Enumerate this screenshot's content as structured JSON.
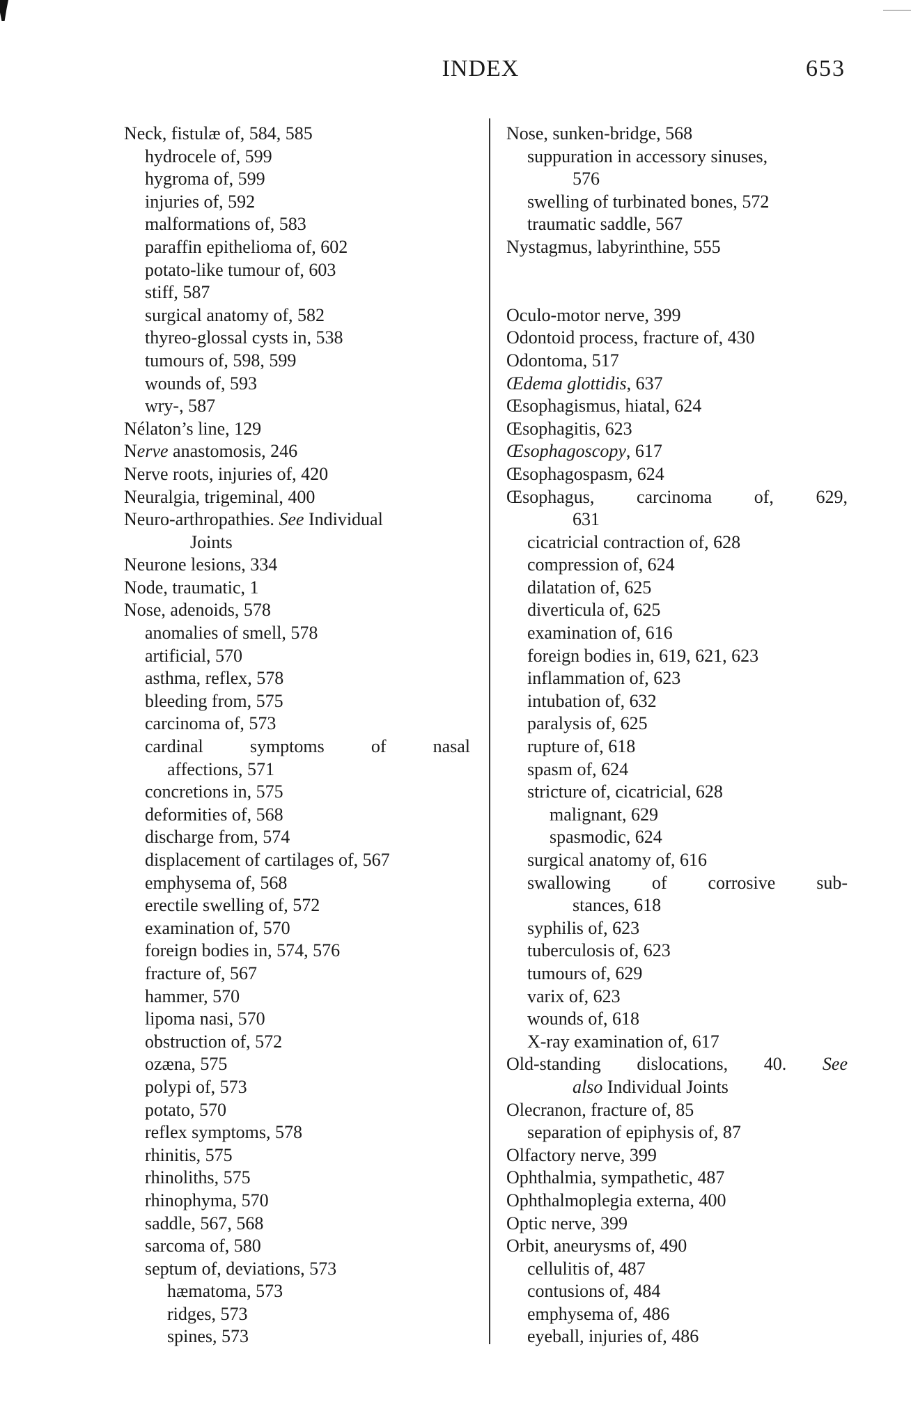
{
  "header": {
    "title": "INDEX",
    "page_number": "653"
  },
  "columns": {
    "left": [
      {
        "i": 0,
        "parts": [
          {
            "t": "Neck, fistulæ of, 584, 585"
          }
        ]
      },
      {
        "i": 1,
        "parts": [
          {
            "t": "hydrocele of, 599"
          }
        ]
      },
      {
        "i": 1,
        "parts": [
          {
            "t": "hygroma of, 599"
          }
        ]
      },
      {
        "i": 1,
        "parts": [
          {
            "t": "injuries of, 592"
          }
        ]
      },
      {
        "i": 1,
        "parts": [
          {
            "t": "malformations of, 583"
          }
        ]
      },
      {
        "i": 1,
        "parts": [
          {
            "t": "paraffin epithelioma of, 602"
          }
        ]
      },
      {
        "i": 1,
        "parts": [
          {
            "t": "potato-like tumour of, 603"
          }
        ]
      },
      {
        "i": 1,
        "parts": [
          {
            "t": "stiff, 587"
          }
        ]
      },
      {
        "i": 1,
        "parts": [
          {
            "t": "surgical anatomy of, 582"
          }
        ]
      },
      {
        "i": 1,
        "parts": [
          {
            "t": "thyreo-glossal cysts in, 538"
          }
        ]
      },
      {
        "i": 1,
        "parts": [
          {
            "t": "tumours of, 598, 599"
          }
        ]
      },
      {
        "i": 1,
        "parts": [
          {
            "t": "wounds of, 593"
          }
        ]
      },
      {
        "i": 1,
        "parts": [
          {
            "t": "wry-, 587"
          }
        ]
      },
      {
        "i": 0,
        "parts": [
          {
            "t": "Nélaton’s line, 129"
          }
        ]
      },
      {
        "i": 0,
        "parts": [
          {
            "t": "N"
          },
          {
            "t": "erve",
            "em": true
          },
          {
            "t": " anastomosis, 246"
          }
        ]
      },
      {
        "i": 0,
        "parts": [
          {
            "t": "Nerve roots, injuries of, 420"
          }
        ]
      },
      {
        "i": 0,
        "parts": [
          {
            "t": "Neuralgia, trigeminal, 400"
          }
        ]
      },
      {
        "i": 0,
        "parts": [
          {
            "t": "Neuro-arthropathies. "
          },
          {
            "t": "See",
            "em": true
          },
          {
            "t": " Individual"
          }
        ]
      },
      {
        "i": 3,
        "parts": [
          {
            "t": "Joints"
          }
        ]
      },
      {
        "i": 0,
        "parts": [
          {
            "t": "Neurone lesions, 334"
          }
        ]
      },
      {
        "i": 0,
        "parts": [
          {
            "t": "Node, traumatic, 1"
          }
        ]
      },
      {
        "i": 0,
        "parts": [
          {
            "t": "Nose, adenoids, 578"
          }
        ]
      },
      {
        "i": 1,
        "parts": [
          {
            "t": "anomalies of smell, 578"
          }
        ]
      },
      {
        "i": 1,
        "parts": [
          {
            "t": "artificial, 570"
          }
        ]
      },
      {
        "i": 1,
        "parts": [
          {
            "t": "asthma, reflex, 578"
          }
        ]
      },
      {
        "i": 1,
        "parts": [
          {
            "t": "bleeding from, 575"
          }
        ]
      },
      {
        "i": 1,
        "parts": [
          {
            "t": "carcinoma of, 573"
          }
        ]
      },
      {
        "i": 1,
        "j": true,
        "parts": [
          {
            "t": "cardinal symptoms of nasal"
          }
        ]
      },
      {
        "i": 2,
        "parts": [
          {
            "t": "affections, 571"
          }
        ]
      },
      {
        "i": 1,
        "parts": [
          {
            "t": "concretions in, 575"
          }
        ]
      },
      {
        "i": 1,
        "parts": [
          {
            "t": "deformities of, 568"
          }
        ]
      },
      {
        "i": 1,
        "parts": [
          {
            "t": "discharge from, 574"
          }
        ]
      },
      {
        "i": 1,
        "parts": [
          {
            "t": "displacement of cartilages of, 567"
          }
        ]
      },
      {
        "i": 1,
        "parts": [
          {
            "t": "emphysema of, 568"
          }
        ]
      },
      {
        "i": 1,
        "parts": [
          {
            "t": "erectile swelling of, 572"
          }
        ]
      },
      {
        "i": 1,
        "parts": [
          {
            "t": "examination of, 570"
          }
        ]
      },
      {
        "i": 1,
        "parts": [
          {
            "t": "foreign bodies in, 574, 576"
          }
        ]
      },
      {
        "i": 1,
        "parts": [
          {
            "t": "fracture of, 567"
          }
        ]
      },
      {
        "i": 1,
        "parts": [
          {
            "t": "hammer, 570"
          }
        ]
      },
      {
        "i": 1,
        "parts": [
          {
            "t": "lipoma nasi, 570"
          }
        ]
      },
      {
        "i": 1,
        "parts": [
          {
            "t": "obstruction of, 572"
          }
        ]
      },
      {
        "i": 1,
        "parts": [
          {
            "t": "ozæna, 575"
          }
        ]
      },
      {
        "i": 1,
        "parts": [
          {
            "t": "polypi of, 573"
          }
        ]
      },
      {
        "i": 1,
        "parts": [
          {
            "t": "potato, 570"
          }
        ]
      },
      {
        "i": 1,
        "parts": [
          {
            "t": "reflex symptoms, 578"
          }
        ]
      },
      {
        "i": 1,
        "parts": [
          {
            "t": "rhinitis, 575"
          }
        ]
      },
      {
        "i": 1,
        "parts": [
          {
            "t": "rhinoliths, 575"
          }
        ]
      },
      {
        "i": 1,
        "parts": [
          {
            "t": "rhinophyma, 570"
          }
        ]
      },
      {
        "i": 1,
        "parts": [
          {
            "t": "saddle, 567, 568"
          }
        ]
      },
      {
        "i": 1,
        "parts": [
          {
            "t": "sarcoma of, 580"
          }
        ]
      },
      {
        "i": 1,
        "parts": [
          {
            "t": "septum of, deviations, 573"
          }
        ]
      },
      {
        "i": 2,
        "parts": [
          {
            "t": "hæmatoma, 573"
          }
        ]
      },
      {
        "i": 2,
        "parts": [
          {
            "t": "ridges, 573"
          }
        ]
      },
      {
        "i": 2,
        "parts": [
          {
            "t": "spines, 573"
          }
        ]
      }
    ],
    "right": [
      {
        "i": 0,
        "parts": [
          {
            "t": "Nose, sunken-bridge, 568"
          }
        ]
      },
      {
        "i": 1,
        "parts": [
          {
            "t": "suppuration in accessory sinuses,"
          }
        ]
      },
      {
        "i": 3,
        "parts": [
          {
            "t": "576"
          }
        ]
      },
      {
        "i": 1,
        "parts": [
          {
            "t": "swelling of turbinated bones, 572"
          }
        ]
      },
      {
        "i": 1,
        "parts": [
          {
            "t": "traumatic saddle, 567"
          }
        ]
      },
      {
        "i": 0,
        "parts": [
          {
            "t": "Nystagmus, labyrinthine, 555"
          }
        ]
      },
      {
        "i": 0,
        "parts": []
      },
      {
        "i": 0,
        "parts": []
      },
      {
        "i": 0,
        "parts": [
          {
            "t": "Oculo-motor nerve, 399"
          }
        ]
      },
      {
        "i": 0,
        "parts": [
          {
            "t": "Odontoid process, fracture of, 430"
          }
        ]
      },
      {
        "i": 0,
        "parts": [
          {
            "t": "Odontoma, 517"
          }
        ]
      },
      {
        "i": 0,
        "parts": [
          {
            "t": "Œdema glottidis",
            "em": true
          },
          {
            "t": ", 637"
          }
        ]
      },
      {
        "i": 0,
        "parts": [
          {
            "t": "Œsophagismus, hiatal, 624"
          }
        ]
      },
      {
        "i": 0,
        "parts": [
          {
            "t": "Œsophagitis, 623"
          }
        ]
      },
      {
        "i": 0,
        "parts": [
          {
            "t": "Œsophagoscopy",
            "em": true
          },
          {
            "t": ", 617"
          }
        ]
      },
      {
        "i": 0,
        "parts": [
          {
            "t": "Œsophagospasm, 624"
          }
        ]
      },
      {
        "i": 0,
        "j": true,
        "parts": [
          {
            "t": "Œsophagus, carcinoma of, 629,"
          }
        ]
      },
      {
        "i": 3,
        "parts": [
          {
            "t": "631"
          }
        ]
      },
      {
        "i": 1,
        "parts": [
          {
            "t": "cicatricial contraction of, 628"
          }
        ]
      },
      {
        "i": 1,
        "parts": [
          {
            "t": "compression of, 624"
          }
        ]
      },
      {
        "i": 1,
        "parts": [
          {
            "t": "dilatation of, 625"
          }
        ]
      },
      {
        "i": 1,
        "parts": [
          {
            "t": "diverticula of, 625"
          }
        ]
      },
      {
        "i": 1,
        "parts": [
          {
            "t": "examination of, 616"
          }
        ]
      },
      {
        "i": 1,
        "parts": [
          {
            "t": "foreign bodies in, 619, 621, 623"
          }
        ]
      },
      {
        "i": 1,
        "parts": [
          {
            "t": "inflammation of, 623"
          }
        ]
      },
      {
        "i": 1,
        "parts": [
          {
            "t": "intubation of, 632"
          }
        ]
      },
      {
        "i": 1,
        "parts": [
          {
            "t": "paralysis of, 625"
          }
        ]
      },
      {
        "i": 1,
        "parts": [
          {
            "t": "rupture of, 618"
          }
        ]
      },
      {
        "i": 1,
        "parts": [
          {
            "t": "spasm of, 624"
          }
        ]
      },
      {
        "i": 1,
        "parts": [
          {
            "t": "stricture of, cicatricial, 628"
          }
        ]
      },
      {
        "i": 2,
        "parts": [
          {
            "t": "malignant, 629"
          }
        ]
      },
      {
        "i": 2,
        "parts": [
          {
            "t": "spasmodic, 624"
          }
        ]
      },
      {
        "i": 1,
        "parts": [
          {
            "t": "surgical anatomy of, 616"
          }
        ]
      },
      {
        "i": 1,
        "j": true,
        "parts": [
          {
            "t": "swallowing of corrosive sub-"
          }
        ]
      },
      {
        "i": 3,
        "parts": [
          {
            "t": "stances, 618"
          }
        ]
      },
      {
        "i": 1,
        "parts": [
          {
            "t": "syphilis of, 623"
          }
        ]
      },
      {
        "i": 1,
        "parts": [
          {
            "t": "tuberculosis of, 623"
          }
        ]
      },
      {
        "i": 1,
        "parts": [
          {
            "t": "tumours of, 629"
          }
        ]
      },
      {
        "i": 1,
        "parts": [
          {
            "t": "varix of, 623"
          }
        ]
      },
      {
        "i": 1,
        "parts": [
          {
            "t": "wounds of, 618"
          }
        ]
      },
      {
        "i": 1,
        "parts": [
          {
            "t": "X-ray examination of, 617"
          }
        ]
      },
      {
        "i": 0,
        "j": true,
        "parts": [
          {
            "t": "Old-standing dislocations, 40. "
          },
          {
            "t": "See",
            "em": true
          }
        ]
      },
      {
        "i": 3,
        "parts": [
          {
            "t": "also",
            "em": true
          },
          {
            "t": " Individual Joints"
          }
        ]
      },
      {
        "i": 0,
        "parts": [
          {
            "t": "Olecranon, fracture of, 85"
          }
        ]
      },
      {
        "i": 1,
        "parts": [
          {
            "t": "separation of epiphysis of, 87"
          }
        ]
      },
      {
        "i": 0,
        "parts": [
          {
            "t": "Olfactory nerve, 399"
          }
        ]
      },
      {
        "i": 0,
        "parts": [
          {
            "t": "Ophthalmia, sympathetic, 487"
          }
        ]
      },
      {
        "i": 0,
        "parts": [
          {
            "t": "Ophthalmoplegia externa, 400"
          }
        ]
      },
      {
        "i": 0,
        "parts": [
          {
            "t": "Optic nerve, 399"
          }
        ]
      },
      {
        "i": 0,
        "parts": [
          {
            "t": "Orbit, aneurysms of, 490"
          }
        ]
      },
      {
        "i": 1,
        "parts": [
          {
            "t": "cellulitis of, 487"
          }
        ]
      },
      {
        "i": 1,
        "parts": [
          {
            "t": "contusions of, 484"
          }
        ]
      },
      {
        "i": 1,
        "parts": [
          {
            "t": "emphysema of, 486"
          }
        ]
      },
      {
        "i": 1,
        "parts": [
          {
            "t": "eyeball, injuries of, 486"
          }
        ]
      }
    ]
  }
}
